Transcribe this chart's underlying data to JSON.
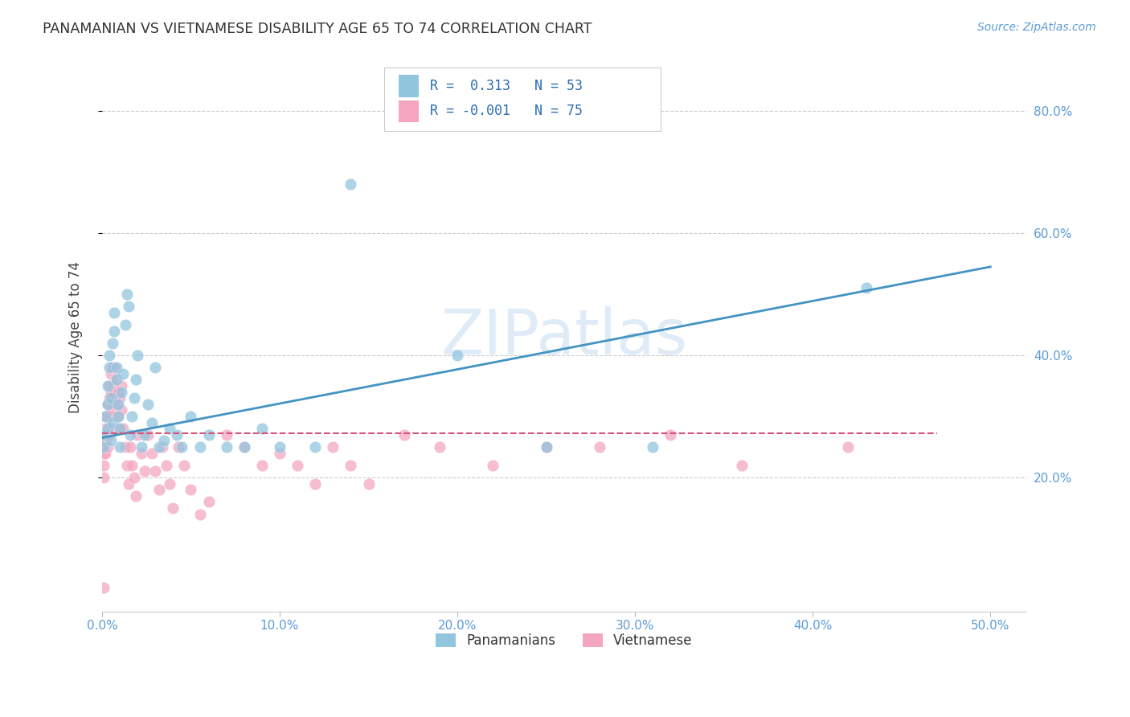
{
  "title": "PANAMANIAN VS VIETNAMESE DISABILITY AGE 65 TO 74 CORRELATION CHART",
  "source": "Source: ZipAtlas.com",
  "ylabel": "Disability Age 65 to 74",
  "xlim": [
    0.0,
    0.52
  ],
  "ylim": [
    -0.02,
    0.88
  ],
  "xtick_vals": [
    0.0,
    0.1,
    0.2,
    0.3,
    0.4,
    0.5
  ],
  "xtick_labels": [
    "0.0%",
    "10.0%",
    "20.0%",
    "30.0%",
    "40.0%",
    "50.0%"
  ],
  "ytick_vals": [
    0.2,
    0.4,
    0.6,
    0.8
  ],
  "ytick_labels": [
    "20.0%",
    "40.0%",
    "60.0%",
    "80.0%"
  ],
  "blue_color": "#92c5de",
  "pink_color": "#f4a6c0",
  "blue_line_color": "#4393c3",
  "pink_line_color": "#d6537a",
  "blue_line_x": [
    0.0,
    0.5
  ],
  "blue_line_y": [
    0.265,
    0.545
  ],
  "pink_line_x": [
    0.0,
    0.47
  ],
  "pink_line_y": [
    0.272,
    0.272
  ],
  "watermark": "ZIPatlas",
  "legend_R_blue": "R =  0.313",
  "legend_N_blue": "N = 53",
  "legend_R_pink": "R = -0.001",
  "legend_N_pink": "N = 75",
  "pan_x": [
    0.001,
    0.001,
    0.002,
    0.003,
    0.003,
    0.003,
    0.004,
    0.004,
    0.005,
    0.005,
    0.006,
    0.006,
    0.007,
    0.007,
    0.008,
    0.008,
    0.009,
    0.009,
    0.01,
    0.01,
    0.011,
    0.012,
    0.013,
    0.014,
    0.015,
    0.016,
    0.017,
    0.018,
    0.019,
    0.02,
    0.022,
    0.024,
    0.026,
    0.028,
    0.03,
    0.032,
    0.035,
    0.038,
    0.042,
    0.045,
    0.05,
    0.055,
    0.06,
    0.07,
    0.08,
    0.09,
    0.1,
    0.12,
    0.14,
    0.2,
    0.25,
    0.31,
    0.43
  ],
  "pan_y": [
    0.27,
    0.25,
    0.3,
    0.28,
    0.32,
    0.35,
    0.38,
    0.4,
    0.26,
    0.33,
    0.29,
    0.42,
    0.44,
    0.47,
    0.36,
    0.38,
    0.3,
    0.32,
    0.25,
    0.28,
    0.34,
    0.37,
    0.45,
    0.5,
    0.48,
    0.27,
    0.3,
    0.33,
    0.36,
    0.4,
    0.25,
    0.27,
    0.32,
    0.29,
    0.38,
    0.25,
    0.26,
    0.28,
    0.27,
    0.25,
    0.3,
    0.25,
    0.27,
    0.25,
    0.25,
    0.28,
    0.25,
    0.25,
    0.68,
    0.4,
    0.25,
    0.25,
    0.51
  ],
  "viet_x": [
    0.001,
    0.001,
    0.001,
    0.001,
    0.002,
    0.002,
    0.002,
    0.002,
    0.003,
    0.003,
    0.003,
    0.003,
    0.004,
    0.004,
    0.004,
    0.004,
    0.005,
    0.005,
    0.005,
    0.005,
    0.006,
    0.006,
    0.006,
    0.007,
    0.007,
    0.008,
    0.008,
    0.009,
    0.009,
    0.01,
    0.01,
    0.011,
    0.011,
    0.012,
    0.013,
    0.014,
    0.015,
    0.016,
    0.017,
    0.018,
    0.019,
    0.02,
    0.022,
    0.024,
    0.026,
    0.028,
    0.03,
    0.032,
    0.034,
    0.036,
    0.038,
    0.04,
    0.043,
    0.046,
    0.05,
    0.055,
    0.06,
    0.07,
    0.08,
    0.09,
    0.1,
    0.11,
    0.12,
    0.13,
    0.14,
    0.15,
    0.17,
    0.19,
    0.22,
    0.25,
    0.28,
    0.32,
    0.36,
    0.42,
    0.001
  ],
  "viet_y": [
    0.27,
    0.24,
    0.22,
    0.2,
    0.3,
    0.28,
    0.26,
    0.24,
    0.32,
    0.3,
    0.28,
    0.25,
    0.35,
    0.33,
    0.3,
    0.27,
    0.37,
    0.34,
    0.31,
    0.28,
    0.38,
    0.35,
    0.32,
    0.38,
    0.34,
    0.36,
    0.32,
    0.34,
    0.3,
    0.33,
    0.28,
    0.35,
    0.31,
    0.28,
    0.25,
    0.22,
    0.19,
    0.25,
    0.22,
    0.2,
    0.17,
    0.27,
    0.24,
    0.21,
    0.27,
    0.24,
    0.21,
    0.18,
    0.25,
    0.22,
    0.19,
    0.15,
    0.25,
    0.22,
    0.18,
    0.14,
    0.16,
    0.27,
    0.25,
    0.22,
    0.24,
    0.22,
    0.19,
    0.25,
    0.22,
    0.19,
    0.27,
    0.25,
    0.22,
    0.25,
    0.25,
    0.27,
    0.22,
    0.25,
    0.02
  ]
}
